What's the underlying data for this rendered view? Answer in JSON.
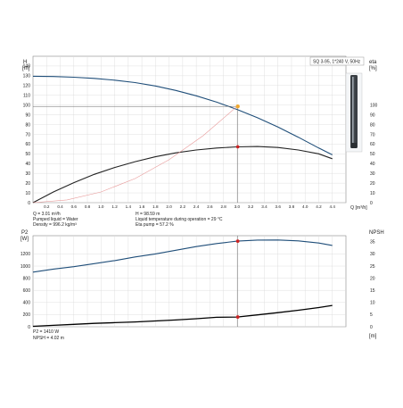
{
  "chart_data": [
    {
      "type": "line",
      "title": "SQ 3-95, 1*240 V, 50Hz",
      "xlabel": "Q [m³/h]",
      "ylabel_top": "H",
      "ylabel_bottom": "[m]",
      "y2label_top": "eta",
      "y2label_bottom": "[%]",
      "xlim": [
        0,
        4.6
      ],
      "ylim": [
        0,
        150
      ],
      "y2lim": [
        0,
        150
      ],
      "x_ticks": [
        "0.2",
        "0.4",
        "0.6",
        "0.8",
        "1.0",
        "1.2",
        "1.4",
        "1.6",
        "1.8",
        "2.0",
        "2.2",
        "2.4",
        "2.6",
        "2.8",
        "3.0",
        "3.2",
        "3.4",
        "3.6",
        "3.8",
        "4.0",
        "4.2",
        "4.4"
      ],
      "x_tick_values": [
        0.2,
        0.4,
        0.6,
        0.8,
        1.0,
        1.2,
        1.4,
        1.6,
        1.8,
        2.0,
        2.2,
        2.4,
        2.6,
        2.8,
        3.0,
        3.2,
        3.4,
        3.6,
        3.8,
        4.0,
        4.2,
        4.4
      ],
      "y_ticks": [
        0,
        10,
        20,
        30,
        40,
        50,
        60,
        70,
        80,
        90,
        100,
        110,
        120,
        130,
        140
      ],
      "y2_ticks": [
        0,
        10,
        20,
        30,
        40,
        50,
        60,
        70,
        80,
        90,
        100
      ],
      "grid": true,
      "series": [
        {
          "role": "head",
          "color": "#1f4e79",
          "x": [
            0,
            0.3,
            0.6,
            0.9,
            1.2,
            1.5,
            1.8,
            2.1,
            2.4,
            2.7,
            3.0,
            3.3,
            3.6,
            3.9,
            4.2,
            4.4
          ],
          "y": [
            129.5,
            129.2,
            128.5,
            127.3,
            125.5,
            123,
            119.5,
            115,
            109.5,
            103,
            95.5,
            87,
            77.5,
            67,
            56,
            49
          ]
        },
        {
          "role": "efficiency",
          "color": "#222222",
          "x": [
            0,
            0.3,
            0.6,
            0.9,
            1.2,
            1.5,
            1.8,
            2.1,
            2.4,
            2.7,
            3.0,
            3.3,
            3.6,
            3.9,
            4.2,
            4.4
          ],
          "y": [
            0,
            11,
            20.5,
            29,
            36,
            42,
            47,
            51,
            54,
            56,
            57.2,
            57.5,
            56.5,
            54,
            50,
            45
          ]
        },
        {
          "role": "system",
          "color": "#e89a9a",
          "x": [
            0,
            0.5,
            1.0,
            1.5,
            2.0,
            2.5,
            3.0
          ],
          "y": [
            0,
            2.8,
            11,
            24.7,
            44,
            68.6,
            98.6
          ]
        }
      ],
      "duty_point": {
        "q": 3.01,
        "h": 98.59,
        "eta": 57.2
      },
      "annotations": [
        "Q = 3.01 m³/h",
        "Pumped liquid = Water",
        "Density = 996.2 kg/m³",
        "H = 98.59 m",
        "Liquid temperature during operation = 29 °C",
        "Eta pump = 57.2 %"
      ]
    },
    {
      "type": "line",
      "ylabel_top": "P2",
      "ylabel_bottom": "[W]",
      "y2label": "NPSH",
      "y2label_unit": "[m]",
      "xlim": [
        0,
        4.6
      ],
      "ylim": [
        0,
        1500
      ],
      "y2lim": [
        0,
        37.5
      ],
      "y_ticks": [
        0,
        200,
        400,
        600,
        800,
        1000,
        1200
      ],
      "y2_ticks": [
        0,
        5,
        10,
        15,
        20,
        25,
        30,
        35
      ],
      "grid": true,
      "series": [
        {
          "role": "power",
          "color": "#1f4e79",
          "x": [
            0,
            0.3,
            0.6,
            0.9,
            1.2,
            1.5,
            1.8,
            2.1,
            2.4,
            2.7,
            3.0,
            3.3,
            3.6,
            3.9,
            4.2,
            4.4
          ],
          "y": [
            900,
            950,
            990,
            1040,
            1090,
            1150,
            1200,
            1260,
            1320,
            1370,
            1410,
            1428,
            1430,
            1415,
            1380,
            1340
          ]
        },
        {
          "role": "npsh",
          "color": "#000000",
          "x": [
            0,
            0.3,
            0.6,
            0.9,
            1.2,
            1.5,
            1.8,
            2.1,
            2.4,
            2.7,
            3.0,
            3.3,
            3.6,
            3.9,
            4.2,
            4.4
          ],
          "y": [
            0.2,
            0.6,
            1.0,
            1.4,
            1.7,
            2.0,
            2.4,
            2.8,
            3.3,
            3.9,
            4.02,
            4.9,
            5.8,
            6.8,
            7.9,
            8.8
          ]
        }
      ],
      "duty_point": {
        "p2": 1410,
        "npsh": 4.02
      },
      "annotations": [
        "P2 = 1410 W",
        "NPSH = 4.02 m"
      ]
    }
  ],
  "colors": {
    "head": "#1f4e79",
    "efficiency": "#222222",
    "system": "#e89a9a",
    "duty_point": "#cc2222",
    "duty_point_top": "#f0a830",
    "grid": "#d8d8d8"
  },
  "legend_icon": "submersible-pump-icon"
}
